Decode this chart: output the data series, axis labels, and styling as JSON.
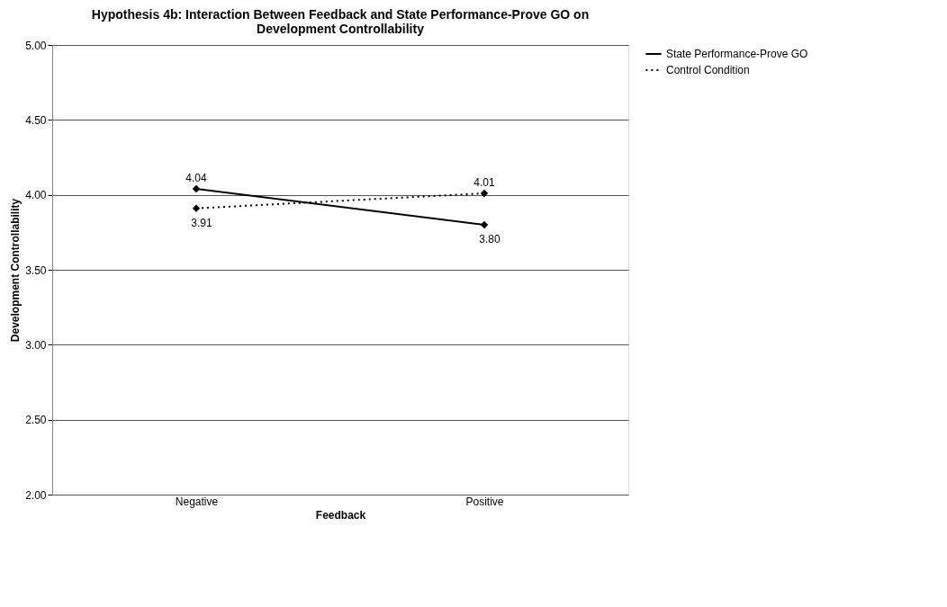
{
  "chart_data": {
    "type": "line",
    "title": [
      "Hypothesis 4b: Interaction Between Feedback and State Performance-Prove GO on",
      "Development Controllability"
    ],
    "xlabel": "Feedback",
    "ylabel": "Development Controllability",
    "categories": [
      "Negative",
      "Positive"
    ],
    "series": [
      {
        "name": "State Performance-Prove GO",
        "color": "#000000",
        "values": [
          4.04,
          3.8
        ],
        "value_labels": [
          "4.04",
          "3.80"
        ],
        "line_style": "solid"
      },
      {
        "name": "Control Condition",
        "color": "#000000",
        "values": [
          3.91,
          4.01
        ],
        "value_labels": [
          "3.91",
          "4.01"
        ],
        "line_style": "dotted"
      }
    ],
    "ylim": [
      2,
      5
    ],
    "yticks": [
      {
        "value": 2,
        "label": "2.00"
      },
      {
        "value": 2.5,
        "label": "2.50"
      },
      {
        "value": 3,
        "label": "3.00"
      },
      {
        "value": 3.5,
        "label": "3.50"
      },
      {
        "value": 4,
        "label": "4.00"
      },
      {
        "value": 4.5,
        "label": "4.50"
      },
      {
        "value": 5,
        "label": "5.00"
      }
    ],
    "grid": "y",
    "legend": "right",
    "marker": "diamond"
  }
}
